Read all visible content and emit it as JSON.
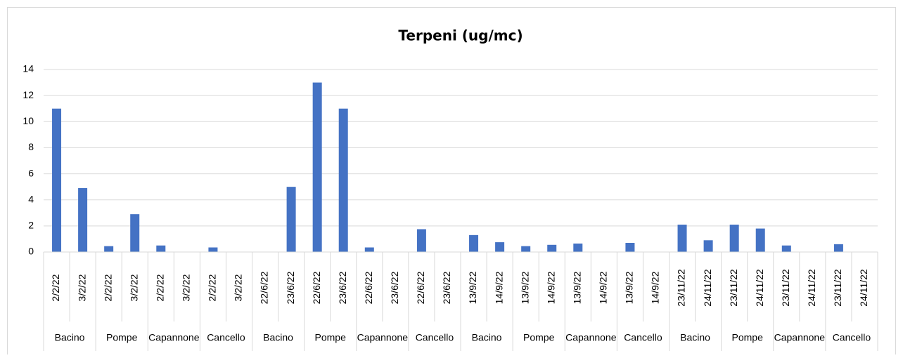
{
  "chart_data": {
    "type": "bar",
    "title": "Terpeni (ug/mc)",
    "categories": [
      "2/2/22",
      "3/2/22",
      "2/2/22",
      "3/2/22",
      "2/2/22",
      "3/2/22",
      "2/2/22",
      "3/2/22",
      "22/6/22",
      "23/6/22",
      "22/6/22",
      "23/6/22",
      "22/6/22",
      "23/6/22",
      "22/6/22",
      "23/6/22",
      "13/9/22",
      "14/9/22",
      "13/9/22",
      "14/9/22",
      "13/9/22",
      "14/9/22",
      "13/9/22",
      "14/9/22",
      "23/11/22",
      "24/11/22",
      "23/11/22",
      "24/11/22",
      "23/11/22",
      "24/11/22",
      "23/11/22",
      "24/11/22"
    ],
    "groups": [
      "Bacino",
      "Pompe",
      "Capannone",
      "Cancello",
      "Bacino",
      "Pompe",
      "Capannone",
      "Cancello",
      "Bacino",
      "Pompe",
      "Capannone",
      "Cancello",
      "Bacino",
      "Pompe",
      "Capannone",
      "Cancello"
    ],
    "values": [
      11,
      4.9,
      0.45,
      2.9,
      0.5,
      null,
      0.35,
      null,
      null,
      5,
      13,
      11,
      0.35,
      null,
      1.75,
      null,
      1.3,
      0.75,
      0.45,
      0.55,
      0.65,
      null,
      0.7,
      null,
      2.1,
      0.9,
      2.1,
      1.8,
      0.5,
      null,
      0.6,
      null
    ],
    "color": "#4472c4",
    "ylim": [
      0,
      14
    ],
    "yticks": [
      0,
      2,
      4,
      6,
      8,
      10,
      12,
      14
    ],
    "grid": true
  }
}
